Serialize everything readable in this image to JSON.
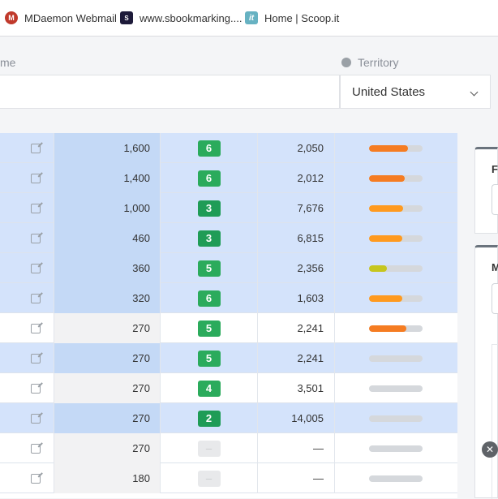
{
  "bookmarks": [
    {
      "label": "MDaemon Webmail",
      "icon": "mdaemon-icon",
      "glyph": "M"
    },
    {
      "label": "www.sbookmarking....",
      "icon": "sbookmarking-icon",
      "glyph": "S"
    },
    {
      "label": "Home | Scoop.it",
      "icon": "scoopit-icon",
      "glyph": "it"
    }
  ],
  "header": {
    "name_label": "me",
    "territory_label": "Territory",
    "territory_value": "United States"
  },
  "rows": [
    {
      "volume": "1,600",
      "kd": "6",
      "kd_color": "#2bab5c",
      "results": "2,050",
      "bar_level": 0.72,
      "bar_color": "#f57c22",
      "selected": true
    },
    {
      "volume": "1,400",
      "kd": "6",
      "kd_color": "#2bab5c",
      "results": "2,012",
      "bar_level": 0.66,
      "bar_color": "#f57c22",
      "selected": true
    },
    {
      "volume": "1,000",
      "kd": "3",
      "kd_color": "#1f9c56",
      "results": "7,676",
      "bar_level": 0.64,
      "bar_color": "#ff9a1f",
      "selected": true
    },
    {
      "volume": "460",
      "kd": "3",
      "kd_color": "#1f9c56",
      "results": "6,815",
      "bar_level": 0.62,
      "bar_color": "#ff9a1f",
      "selected": true
    },
    {
      "volume": "360",
      "kd": "5",
      "kd_color": "#2bab5c",
      "results": "2,356",
      "bar_level": 0.34,
      "bar_color": "#c6c61e",
      "selected": true
    },
    {
      "volume": "320",
      "kd": "6",
      "kd_color": "#2bab5c",
      "results": "1,603",
      "bar_level": 0.62,
      "bar_color": "#ff9a1f",
      "selected": true
    },
    {
      "volume": "270",
      "kd": "5",
      "kd_color": "#2bab5c",
      "results": "2,241",
      "bar_level": 0.7,
      "bar_color": "#f57c22",
      "selected": false
    },
    {
      "volume": "270",
      "kd": "5",
      "kd_color": "#2bab5c",
      "results": "2,241",
      "bar_level": 0,
      "bar_color": "#d5d8dc",
      "selected": true
    },
    {
      "volume": "270",
      "kd": "4",
      "kd_color": "#2bab5c",
      "results": "3,501",
      "bar_level": 0,
      "bar_color": "#d5d8dc",
      "selected": false
    },
    {
      "volume": "270",
      "kd": "2",
      "kd_color": "#1f9c56",
      "results": "14,005",
      "bar_level": 0,
      "bar_color": "#d5d8dc",
      "selected": true
    },
    {
      "volume": "270",
      "kd": "–",
      "kd_color": "",
      "results": "—",
      "bar_level": 0,
      "bar_color": "#d5d8dc",
      "selected": false
    },
    {
      "volume": "180",
      "kd": "–",
      "kd_color": "",
      "results": "—",
      "bar_level": 0,
      "bar_color": "#d5d8dc",
      "selected": false
    }
  ],
  "panels": [
    {
      "letter": "F"
    },
    {
      "letter": "M"
    }
  ],
  "close_glyph": "✕"
}
